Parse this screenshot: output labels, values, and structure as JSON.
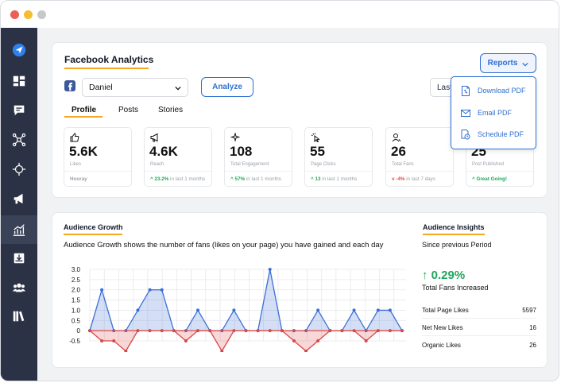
{
  "window": {
    "controls": [
      "close",
      "minimize",
      "maximize"
    ],
    "colors": {
      "close": "#ec5f58",
      "minimize": "#f6bd30",
      "maximize": "#c8c8c8"
    }
  },
  "sidebar": {
    "items": [
      {
        "icon": "send-icon"
      },
      {
        "icon": "dashboard-icon"
      },
      {
        "icon": "chat-icon"
      },
      {
        "icon": "network-icon"
      },
      {
        "icon": "move-icon"
      },
      {
        "icon": "megaphone-icon"
      },
      {
        "icon": "analytics-icon",
        "active": true
      },
      {
        "icon": "inbox-icon"
      },
      {
        "icon": "team-icon"
      },
      {
        "icon": "library-icon"
      }
    ]
  },
  "analytics": {
    "title": "Facebook Analytics",
    "account": "Daniel",
    "analyze_label": "Analyze",
    "date_label": "Last",
    "reports_label": "Reports",
    "reports_menu": [
      "Download PDF",
      "Email PDF",
      "Schedule PDF"
    ],
    "tabs": [
      "Profile",
      "Posts",
      "Stories"
    ],
    "active_tab": "Profile",
    "stats": [
      {
        "icon": "thumbs-up-icon",
        "value": "5.6K",
        "label": "Likes",
        "trend": "",
        "trend_text": "Hooray",
        "trend_dir": "neutral"
      },
      {
        "icon": "megaphone-icon",
        "value": "4.6K",
        "label": "Reach",
        "trend": "23.2%",
        "trend_text": "in last 1 months",
        "trend_dir": "up"
      },
      {
        "icon": "sparkle-icon",
        "value": "108",
        "label": "Total Engagement",
        "trend": "57%",
        "trend_text": "in last 1 months",
        "trend_dir": "up"
      },
      {
        "icon": "cursor-click-icon",
        "value": "55",
        "label": "Page Clicks",
        "trend": "13",
        "trend_text": "in last 1 months",
        "trend_dir": "up"
      },
      {
        "icon": "user-icon",
        "value": "26",
        "label": "Total Fans",
        "trend": "-4%",
        "trend_text": "in last 7 days",
        "trend_dir": "down"
      },
      {
        "icon": "post-icon",
        "value": "25",
        "label": "Post Published",
        "trend": "",
        "trend_text": "Great Going!",
        "trend_dir": "up"
      }
    ]
  },
  "growth": {
    "title": "Audience Growth",
    "description": "Audience Growth shows the number of fans (likes on your page) you have gained and each day"
  },
  "insights": {
    "title": "Audience Insights",
    "subtitle": "Since previous Period",
    "percent": "0.29%",
    "percent_label": "Total Fans Increased",
    "rows": [
      {
        "label": "Total Page Likes",
        "value": "5597"
      },
      {
        "label": "Net New Likes",
        "value": "16"
      },
      {
        "label": "Organic Likes",
        "value": "26"
      }
    ]
  },
  "chart_data": {
    "type": "area",
    "ylim": [
      -0.5,
      3.0
    ],
    "yticks": [
      "3.0",
      "2.5",
      "2.0",
      "1.5",
      "1.0",
      "0.5",
      "0",
      "-0.5"
    ],
    "grid": true,
    "series": [
      {
        "color": "#3b6fd6",
        "values": [
          0,
          2,
          0,
          0,
          1,
          2,
          2,
          0,
          0,
          1,
          0,
          0,
          1,
          0,
          0,
          3,
          0,
          0,
          0,
          1,
          0,
          0,
          1,
          0,
          1,
          1,
          0
        ]
      },
      {
        "color": "#d94848",
        "values": [
          0,
          -0.5,
          -0.5,
          -1,
          0,
          0,
          0,
          0,
          -0.5,
          0,
          0,
          -1,
          0,
          0,
          0,
          0,
          0,
          -0.5,
          -1,
          -0.5,
          0,
          0,
          0,
          -0.5,
          0,
          0,
          0
        ]
      }
    ]
  }
}
